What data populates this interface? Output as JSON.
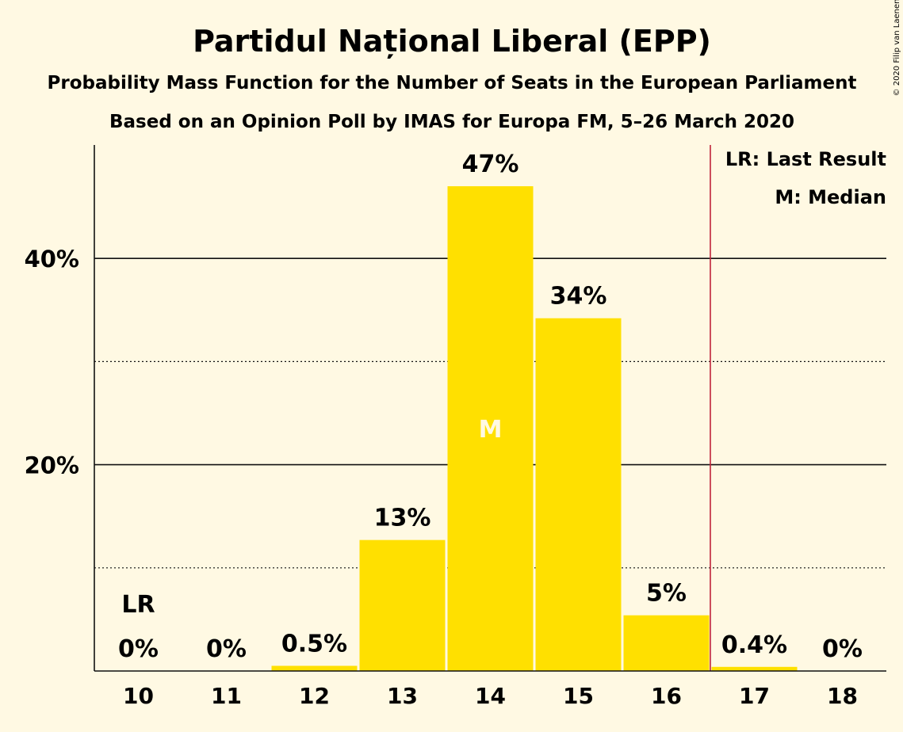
{
  "chart_data": {
    "type": "bar",
    "title": "Partidul Național Liberal (EPP)",
    "subtitle_1": "Probability Mass Function for the Number of Seats in the European Parliament",
    "subtitle_2": "Based on an Opinion Poll by IMAS for Europa FM, 5–26 March 2020",
    "copyright": "© 2020 Filip van Laenen",
    "categories": [
      "10",
      "11",
      "12",
      "13",
      "14",
      "15",
      "16",
      "17",
      "18"
    ],
    "values": [
      0,
      0,
      0.5,
      12.7,
      47,
      34.2,
      5.4,
      0.4,
      0
    ],
    "value_labels": [
      "0%",
      "0%",
      "0.5%",
      "13%",
      "47%",
      "34%",
      "5%",
      "0.4%",
      "0%"
    ],
    "ylim": [
      0,
      51
    ],
    "y_ticks_major": [
      20,
      40
    ],
    "y_ticks_major_labels": [
      "20%",
      "40%"
    ],
    "y_ticks_minor": [
      10,
      30
    ],
    "last_result_seats": "10",
    "last_result_marker": "LR",
    "median_seats": "14",
    "median_marker": "M",
    "legend": [
      "LR: Last Result",
      "M: Median"
    ],
    "legend_placement": "top-right",
    "bar_color": "#FFE000",
    "last_result_line_color": "#C0223A",
    "background_color": "#FFF9E3"
  }
}
